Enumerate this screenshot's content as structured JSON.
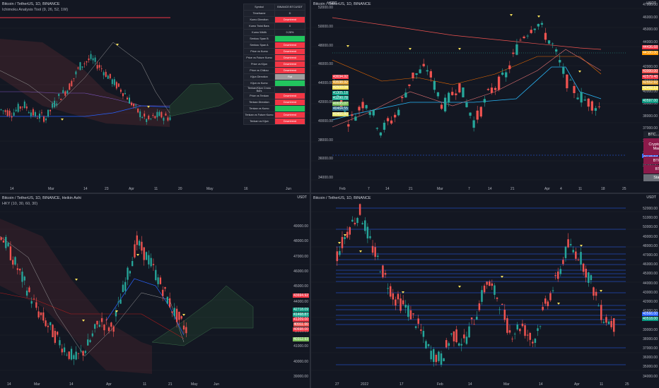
{
  "panes": {
    "tl": {
      "title": "Bitcoin / TetherUS, 1D, BINANCE",
      "subtitle": "Ichimoku Analysis Tool (9, 26, 52, 1W)",
      "xticks": [
        "14",
        "Mar",
        "14",
        "23",
        "Apr",
        "11",
        "20",
        "May",
        "16",
        "Jun"
      ]
    },
    "tr": {
      "title": "Bitcoin / TetherUS, 1D, BINANCE",
      "currency": "USDT",
      "yticks": [
        "52000.00",
        "50000.00",
        "48000.00",
        "46000.00",
        "44000.00",
        "42000.00",
        "40000.00",
        "38000.00",
        "36000.00",
        "34000.00"
      ],
      "yticks_right": [
        "47000.00",
        "46000.00",
        "45000.00",
        "44000.00",
        "43000.00",
        "42000.00",
        "41000.00",
        "40000.00",
        "39000.00",
        "38000.00",
        "37000.00",
        "36000.00",
        "35000.00",
        "34000.00"
      ],
      "xticks": [
        "Feb",
        "7",
        "14",
        "21",
        "Mar",
        "7",
        "14",
        "21",
        "Apr",
        "4",
        "11",
        "18",
        "25"
      ],
      "price_labels_left": [
        {
          "text": "43694.92",
          "color": "#f23645"
        },
        {
          "text": "43598.92",
          "color": "#e0a030"
        },
        {
          "text": "42500.04",
          "color": "#f6e05a"
        },
        {
          "text": "41305.18",
          "color": "#089981"
        },
        {
          "text": "41290.78",
          "color": "#22ab94"
        },
        {
          "text": "40695.07",
          "color": "#7cbf5a"
        },
        {
          "text": "40464.55",
          "color": "#2a6a8a"
        },
        {
          "text": "40466.80",
          "color": "#e1e16a"
        }
      ],
      "price_labels_right": [
        {
          "text": "44436.68",
          "color": "#f23645"
        },
        {
          "text": "44100.00",
          "color": "#ff9800"
        },
        {
          "text": "43000.00",
          "color": "#ef5350"
        },
        {
          "text": "42579.48",
          "color": "#f23645"
        },
        {
          "text": "42552.92",
          "color": "#e0a030"
        },
        {
          "text": "42492.13",
          "color": "#f6e05a"
        },
        {
          "text": "40597.00",
          "color": "#089981"
        },
        {
          "text": "35752.25",
          "color": "#2962ff"
        }
      ],
      "cycle_header": "BTC... Cycle",
      "cycle_items": [
        "Crypto Total Market",
        "BTC.D",
        "BTC",
        "Stable"
      ]
    },
    "bl": {
      "title": "Bitcoin / TetherUS, 1D, BINANCE, Heikin Ashi",
      "subtitle": "HKY (10, 30, 60, 30)",
      "currency": "USDT",
      "yticks": [
        "49000.00",
        "48000.00",
        "47000.00",
        "46000.00",
        "45000.00",
        "44000.00",
        "43000.00",
        "42000.00",
        "41000.00",
        "40000.00",
        "39000.00",
        "38000.00"
      ],
      "xticks": [
        "14",
        "Mar",
        "14",
        "Apr",
        "11",
        "21",
        "May",
        "Jun"
      ],
      "price_labels": [
        {
          "text": "43694.92",
          "color": "#f23645"
        },
        {
          "text": "42718.09",
          "color": "#089981"
        },
        {
          "text": "41468.87",
          "color": "#22ab94"
        },
        {
          "text": "41209.00",
          "color": "#f23645"
        },
        {
          "text": "40911.00",
          "color": "#ef5350"
        },
        {
          "text": "40698.00",
          "color": "#f23645"
        },
        {
          "text": "40312.93",
          "color": "#7cbf5a"
        }
      ]
    },
    "br": {
      "title": "Bitcoin / TetherUS, 1D, BINANCE",
      "currency": "USDT",
      "yticks": [
        "52000.00",
        "51000.00",
        "50000.00",
        "49000.00",
        "48000.00",
        "47000.00",
        "46000.00",
        "45000.00",
        "44000.00",
        "43000.00",
        "42000.00",
        "41000.00",
        "40000.00",
        "39000.00",
        "38000.00",
        "37000.00",
        "36000.00",
        "35000.00",
        "34000.00"
      ],
      "xticks": [
        "27",
        "2022",
        "17",
        "Feb",
        "14",
        "Mar",
        "14",
        "Apr",
        "11",
        "25"
      ],
      "price_labels": [
        {
          "text": "40566.00",
          "color": "#2962ff"
        },
        {
          "text": "40518.00",
          "color": "#089981"
        }
      ]
    }
  },
  "table": {
    "header": [
      "Symbol",
      "BINANCE:BTCUSDT"
    ],
    "rows": [
      {
        "label": "Timeframe",
        "value": "D",
        "color": ""
      },
      {
        "label": "Kumo Direction",
        "value": "Downtrend",
        "color": "#f23645"
      },
      {
        "label": "Kumo Twist Bars",
        "value": "0",
        "color": ""
      },
      {
        "label": "Kumo Width",
        "value": "0.28%",
        "color": ""
      },
      {
        "label": "Senkou Span B",
        "value": "",
        "color": "#22c55e"
      },
      {
        "label": "Senkou Span A",
        "value": "Downtrend",
        "color": "#f23645"
      },
      {
        "label": "Price vs Kumo",
        "value": "Downtrend",
        "color": "#f23645"
      },
      {
        "label": "Price vs Future Kumo",
        "value": "Downtrend",
        "color": "#f23645"
      },
      {
        "label": "Price vs Kijun",
        "value": "Downtrend",
        "color": "#f23645"
      },
      {
        "label": "Price vs Chikou",
        "value": "Downtrend",
        "color": "#f23645"
      },
      {
        "label": "Kijun Direction",
        "value": "Flat",
        "color": "#9e9e9e"
      },
      {
        "label": "Kijun vs Kumo",
        "value": "",
        "color": "#22c55e"
      },
      {
        "label": "Tenkan/Kijun Cross Bars",
        "value": "6",
        "color": ""
      },
      {
        "label": "Price vs Tenkan",
        "value": "Downtrend",
        "color": "#f23645"
      },
      {
        "label": "Tenkan Direction",
        "value": "Downtrend",
        "color": "#f23645"
      },
      {
        "label": "Tenkan vs Kumo",
        "value": "",
        "color": "#22c55e"
      },
      {
        "label": "Tenkan vs Future Kumo",
        "value": "Downtrend",
        "color": "#f23645"
      },
      {
        "label": "Tenkan vs Kijun",
        "value": "Downtrend",
        "color": "#f23645"
      }
    ]
  },
  "colors": {
    "up": "#26a69a",
    "down": "#ef5350",
    "bg": "#131722",
    "grid": "#1e222d",
    "line": "#2962ff"
  }
}
